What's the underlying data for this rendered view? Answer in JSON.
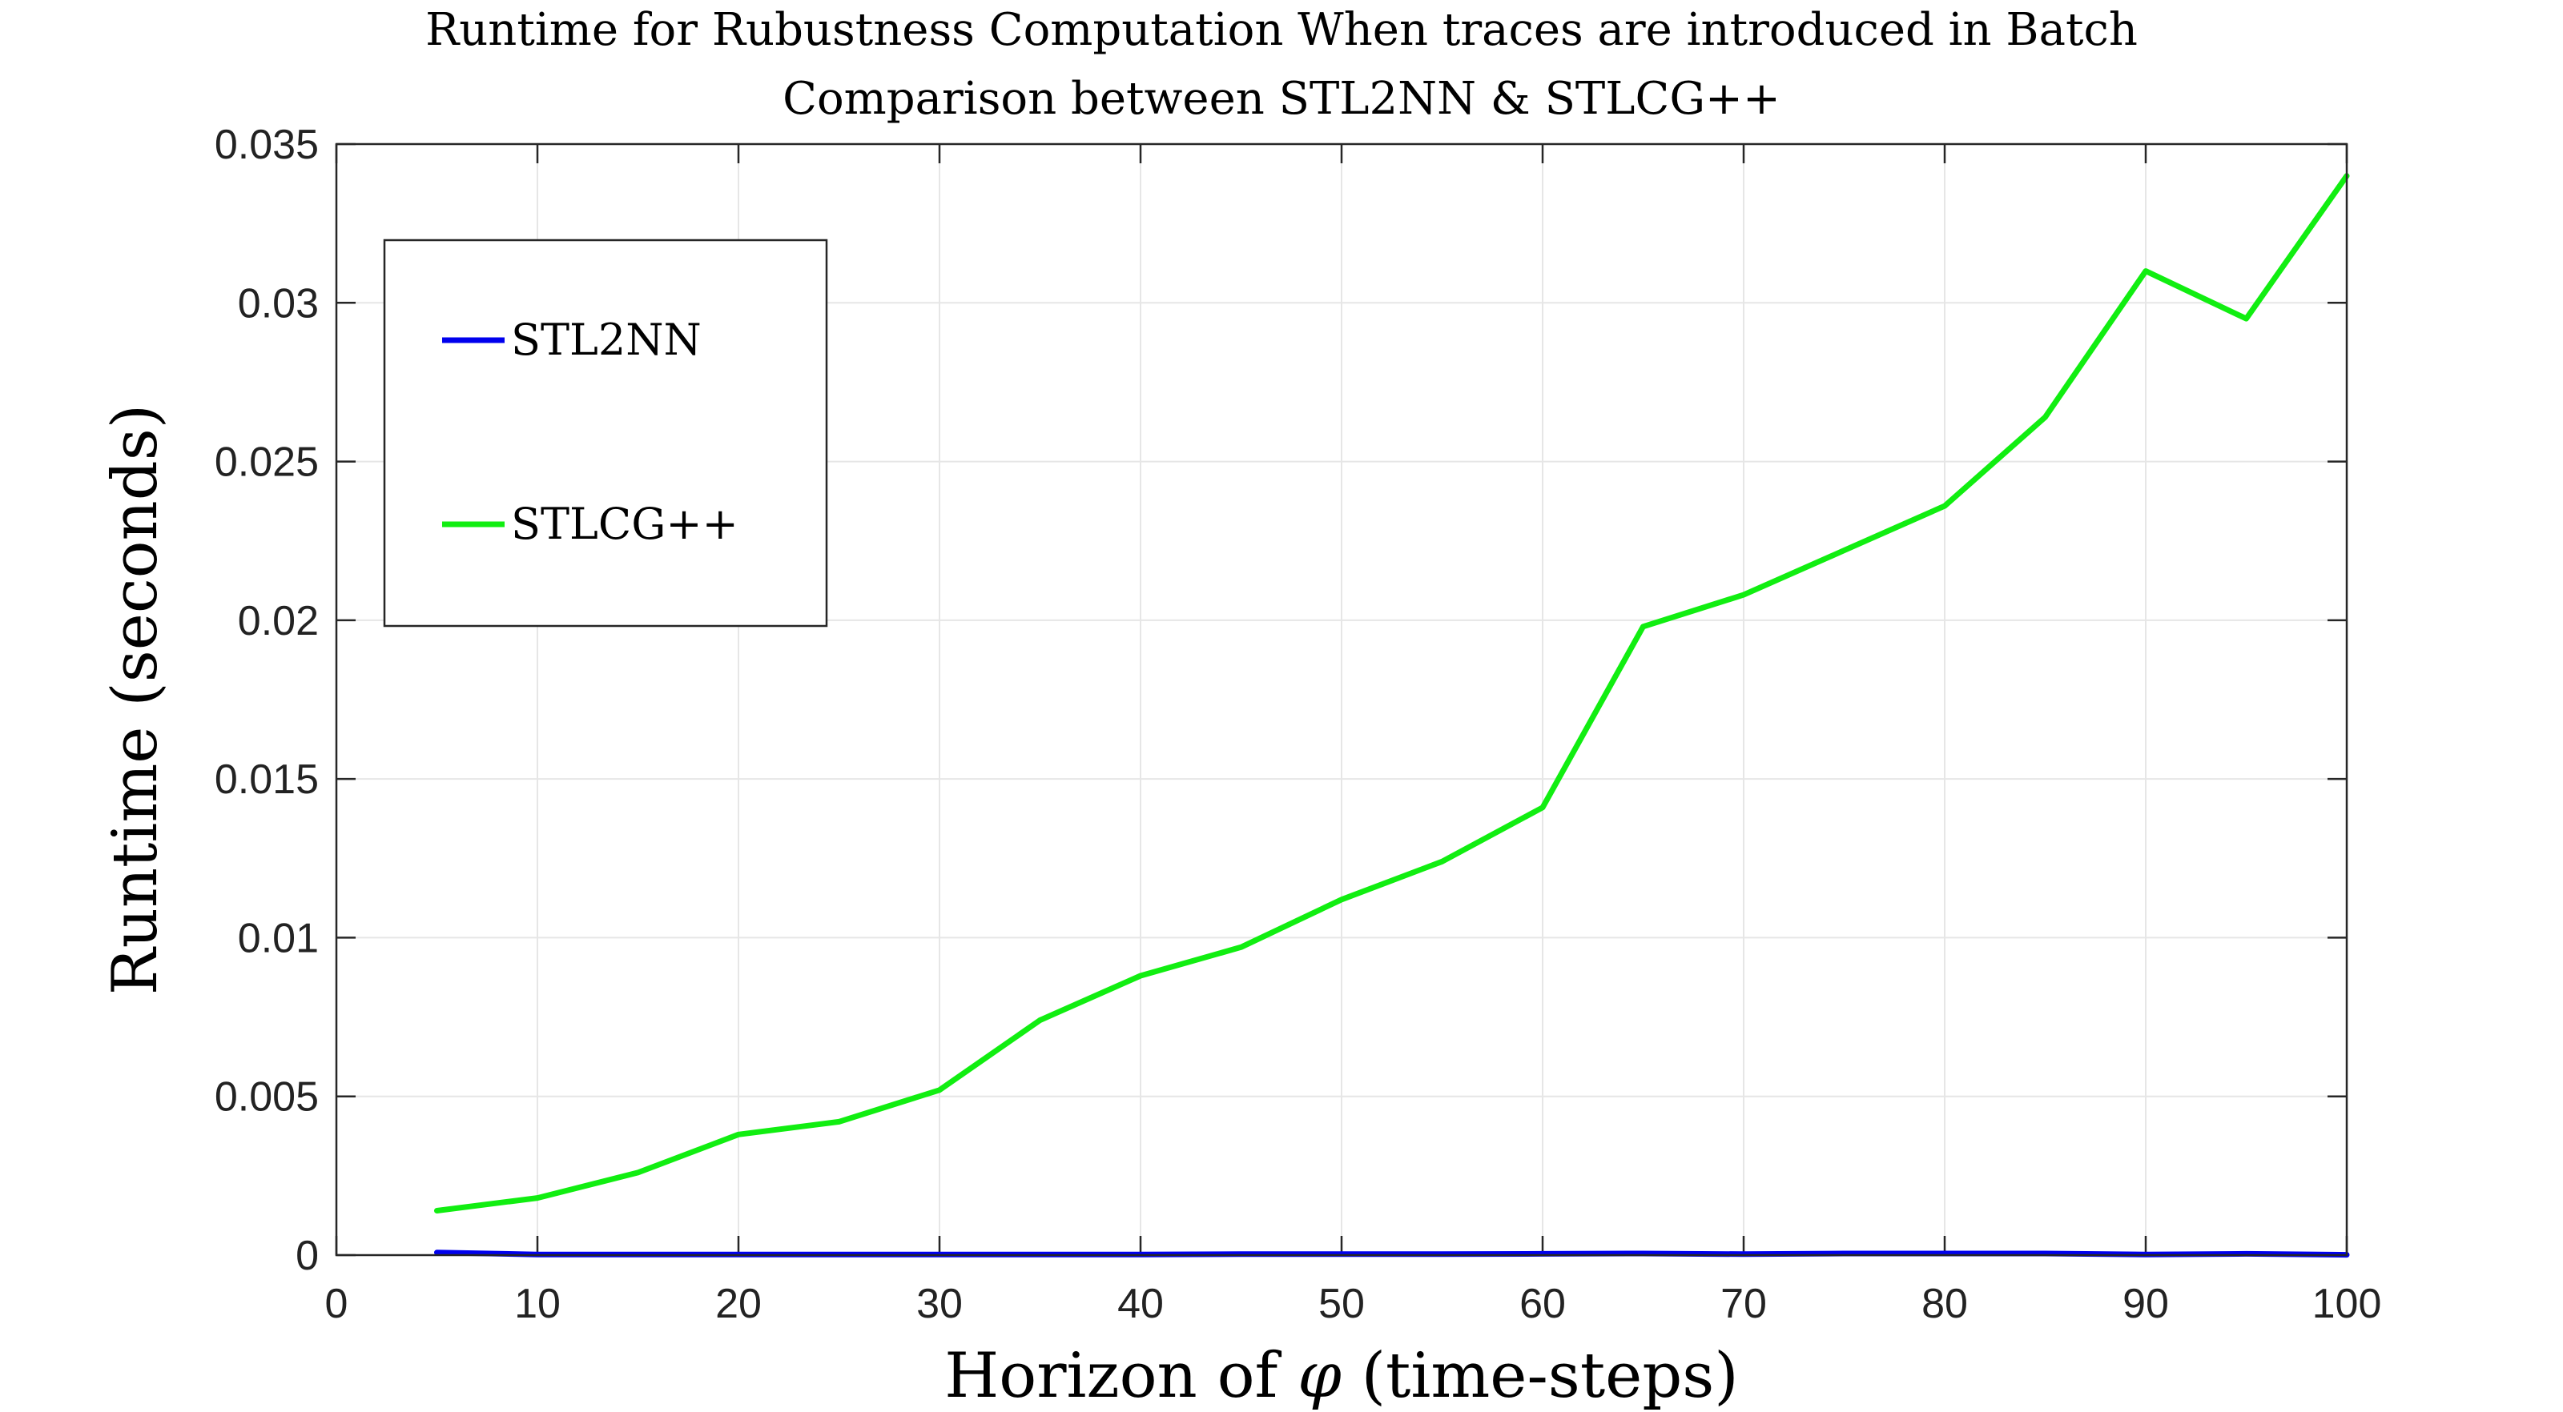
{
  "chart_data": {
    "type": "line",
    "title": "Runtime for Rubustness Computation When traces are introduced in Batch",
    "subtitle": "Comparison between STL2NN & STLCG++",
    "xlabel_prefix": "Horizon of ",
    "xlabel_symbol": "φ",
    "xlabel_suffix": " (time-steps)",
    "ylabel": "Runtime (seconds)",
    "xlim": [
      0,
      100
    ],
    "ylim": [
      0,
      0.035
    ],
    "xticks": [
      0,
      10,
      20,
      30,
      40,
      50,
      60,
      70,
      80,
      90,
      100
    ],
    "xtick_labels": [
      "0",
      "10",
      "20",
      "30",
      "40",
      "50",
      "60",
      "70",
      "80",
      "90",
      "100"
    ],
    "yticks": [
      0,
      0.005,
      0.01,
      0.015,
      0.02,
      0.025,
      0.03,
      0.035
    ],
    "ytick_labels": [
      "0",
      "0.005",
      "0.01",
      "0.015",
      "0.02",
      "0.025",
      "0.03",
      "0.035"
    ],
    "grid": true,
    "legend_position": "top-left",
    "x": [
      5,
      10,
      15,
      20,
      25,
      30,
      35,
      40,
      45,
      50,
      55,
      60,
      65,
      70,
      75,
      80,
      85,
      90,
      95,
      100
    ],
    "series": [
      {
        "name": "STL2NN",
        "color": "#0000ee",
        "values": [
          8e-05,
          2e-05,
          2e-05,
          2e-05,
          2e-05,
          2e-05,
          2e-05,
          2e-05,
          3e-05,
          3e-05,
          3e-05,
          4e-05,
          5e-05,
          3e-05,
          5e-05,
          5e-05,
          5e-05,
          2e-05,
          4e-05,
          1e-05
        ]
      },
      {
        "name": "STLCG++",
        "color": "#11ee11",
        "values": [
          0.0014,
          0.0018,
          0.0026,
          0.0038,
          0.0042,
          0.0052,
          0.0074,
          0.0088,
          0.0097,
          0.0112,
          0.0124,
          0.0141,
          0.0198,
          0.0208,
          0.0222,
          0.0236,
          0.0264,
          0.031,
          0.0295,
          0.034
        ]
      }
    ]
  }
}
